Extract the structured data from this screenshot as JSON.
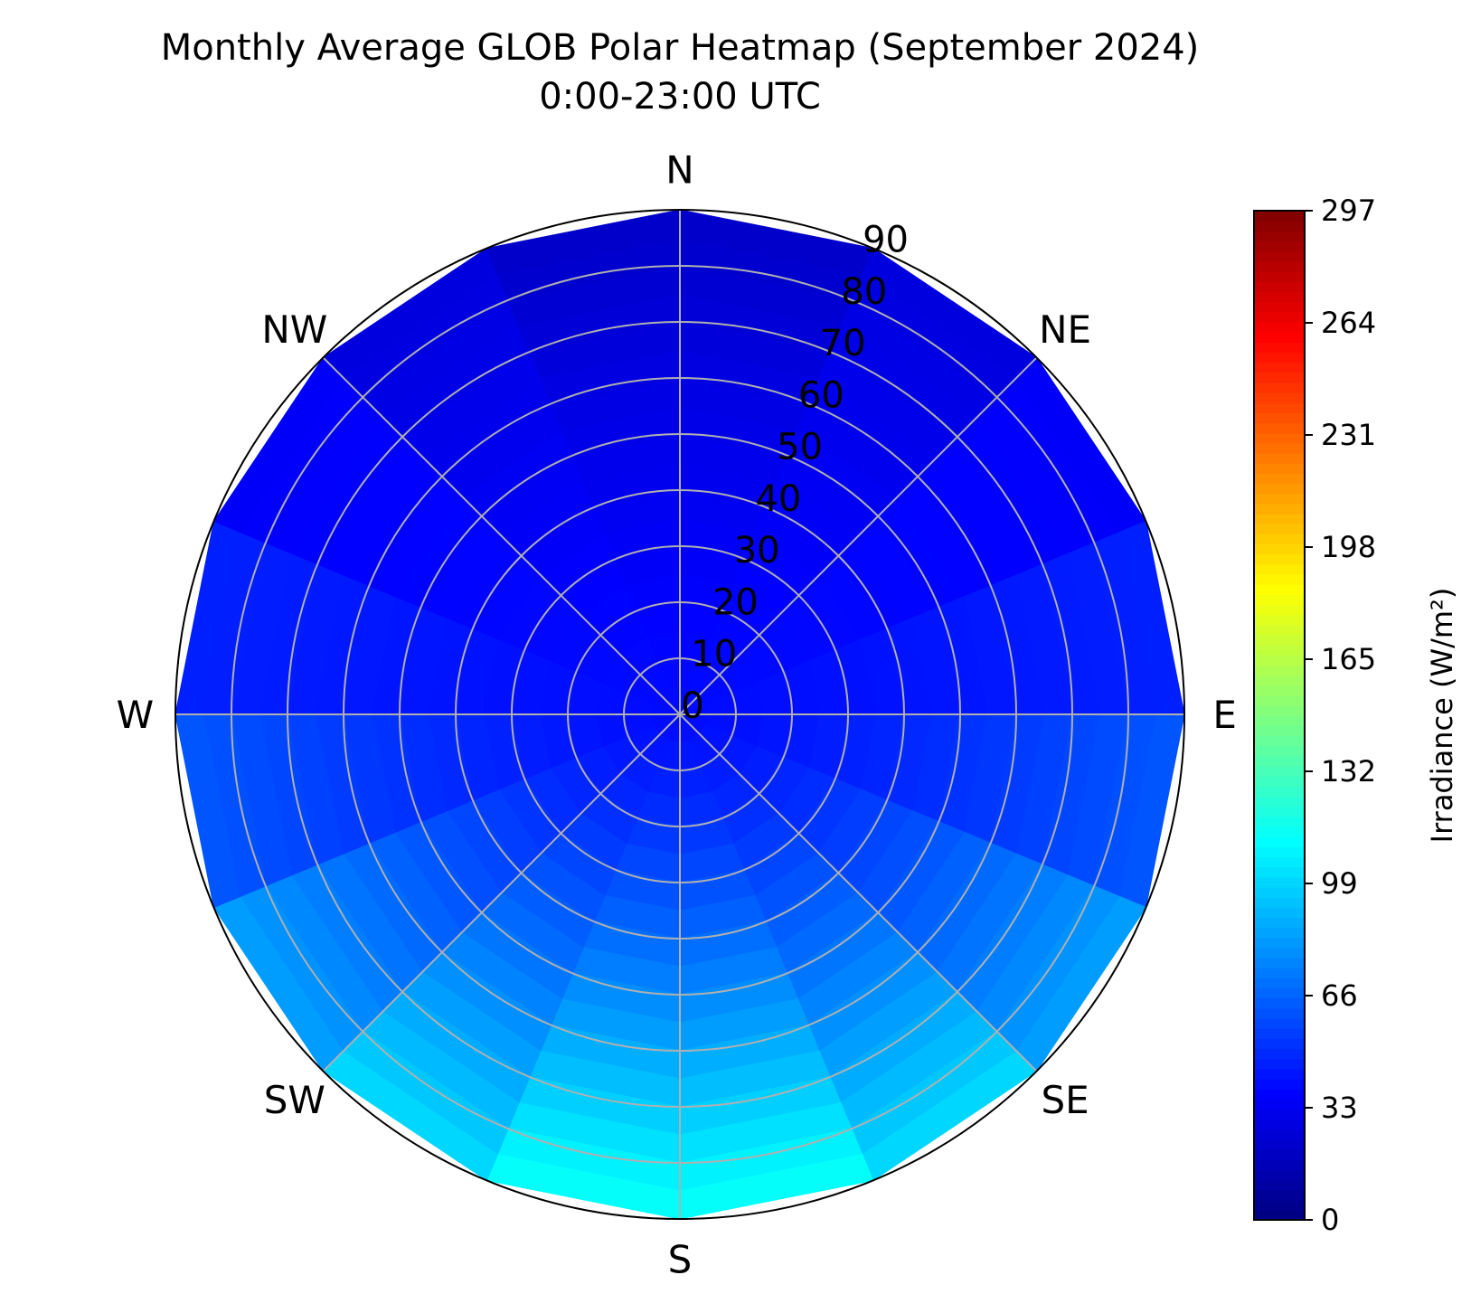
{
  "chart_data": {
    "type": "heatmap",
    "projection": "polar",
    "title": "Monthly Average GLOB Polar Heatmap (September 2024)",
    "subtitle": "0:00-23:00 UTC",
    "direction_labels": [
      "N",
      "NE",
      "E",
      "SE",
      "S",
      "SW",
      "W",
      "NW"
    ],
    "radial_ticks": [
      0,
      10,
      20,
      30,
      40,
      50,
      60,
      70,
      80,
      90
    ],
    "radial_range": [
      0,
      90
    ],
    "grid": true,
    "colormap": "jet",
    "colorbar": {
      "label": "Irradiance (W/m²)",
      "range": [
        0,
        297
      ],
      "ticks": [
        0,
        33,
        66,
        99,
        132,
        165,
        198,
        231,
        264,
        297
      ]
    },
    "azimuth_step_deg": 22.5,
    "radius_step": 5,
    "approx_values": {
      "description_axis": "value(azimuth, radius) ≈ base + (edge_value(azimuth) - base) * (radius/90)^1.25",
      "center_value": 40,
      "azimuth_deg": [
        0,
        45,
        90,
        135,
        180,
        225,
        270,
        315
      ],
      "edge_value": [
        18,
        30,
        52,
        95,
        122,
        95,
        52,
        30
      ]
    }
  }
}
